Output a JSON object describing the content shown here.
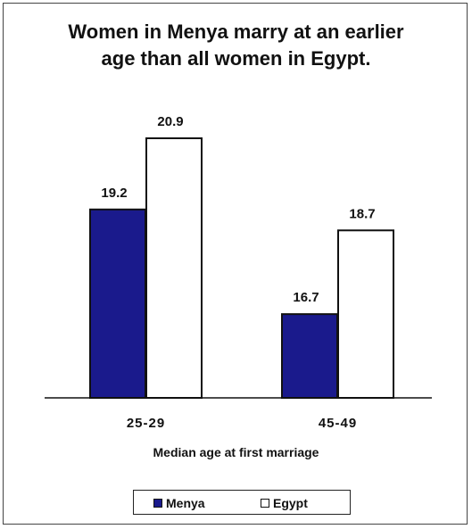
{
  "chart_data": {
    "type": "bar",
    "title_lines": [
      "Women in Menya marry at an earlier",
      "age than all women in Egypt."
    ],
    "categories": [
      "25-29",
      "45-49"
    ],
    "series": [
      {
        "name": "Menya",
        "values": [
          19.2,
          16.7
        ],
        "color": "#1a1a8c"
      },
      {
        "name": "Egypt",
        "values": [
          20.9,
          18.7
        ],
        "color": "#ffffff"
      }
    ],
    "xlabel": "Median age at first marriage",
    "ylim": [
      14.7,
      20.9
    ],
    "grid": false,
    "legend": "bottom"
  }
}
